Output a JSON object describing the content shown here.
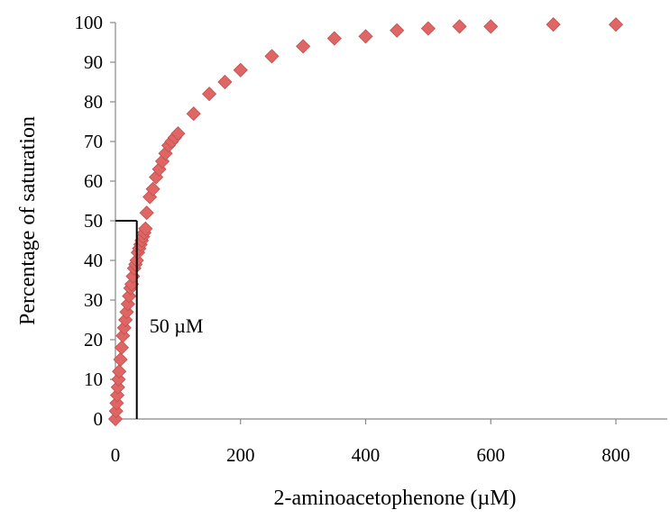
{
  "chart_data": {
    "type": "scatter",
    "xlabel": "2-aminoacetophenone (µM)",
    "ylabel": "Percentage of saturation",
    "xlim": [
      0,
      800
    ],
    "ylim": [
      0,
      100
    ],
    "x_ticks": [
      0,
      200,
      400,
      600,
      800
    ],
    "y_ticks": [
      0,
      10,
      20,
      30,
      40,
      50,
      60,
      70,
      80,
      90,
      100
    ],
    "grid": false,
    "legend": "none",
    "marker": "diamond",
    "marker_color": "#e06666",
    "marker_stroke": "#c0504d",
    "series": [
      {
        "x": [
          0,
          1,
          2,
          3,
          4,
          5,
          6,
          8,
          10,
          12,
          14,
          16,
          18,
          20,
          22,
          24,
          26,
          28,
          30,
          32,
          34,
          36,
          38,
          40,
          42,
          44,
          46,
          48,
          50,
          55,
          60,
          65,
          70,
          75,
          80,
          85,
          90,
          95,
          100,
          125,
          150,
          175,
          200,
          250,
          300,
          350,
          400,
          450,
          500,
          550,
          600,
          700,
          800
        ],
        "y": [
          0,
          2,
          4,
          6,
          8,
          10,
          12,
          15,
          18,
          21,
          23,
          25,
          27,
          29,
          31,
          33,
          34,
          36,
          38,
          39,
          40,
          42,
          43,
          44,
          45,
          46,
          47,
          48,
          52,
          56,
          58,
          61,
          63,
          65,
          67,
          69,
          70,
          71,
          72,
          77,
          82,
          85,
          88,
          91.5,
          94,
          96,
          96.5,
          98,
          98.5,
          99,
          99,
          99.5,
          99.5
        ]
      }
    ],
    "annotations": [
      {
        "text": "50 µM",
        "x": 50,
        "y": 50
      }
    ]
  }
}
